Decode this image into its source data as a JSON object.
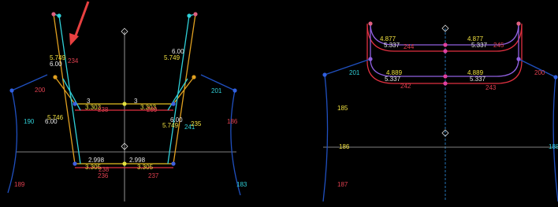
{
  "left_panel": {
    "labels": [
      {
        "text": "5.749"
      },
      {
        "text": "6.00"
      },
      {
        "text": "234"
      },
      {
        "text": "200"
      },
      {
        "text": "190"
      },
      {
        "text": "5.746"
      },
      {
        "text": "6.00"
      },
      {
        "text": "3"
      },
      {
        "text": "3.303"
      },
      {
        "text": "238"
      },
      {
        "text": "3"
      },
      {
        "text": "3.303"
      },
      {
        "text": "239"
      },
      {
        "text": "6.00"
      },
      {
        "text": "5.749"
      },
      {
        "text": "241"
      },
      {
        "text": "201"
      },
      {
        "text": "6.00"
      },
      {
        "text": "5.749"
      },
      {
        "text": "235"
      },
      {
        "text": "186"
      },
      {
        "text": "2.998"
      },
      {
        "text": "3.305"
      },
      {
        "text": "238"
      },
      {
        "text": "2.998"
      },
      {
        "text": "3.305"
      },
      {
        "text": "236"
      },
      {
        "text": "237"
      },
      {
        "text": "189"
      },
      {
        "text": "183"
      }
    ]
  },
  "right_panel": {
    "labels": [
      {
        "text": "4.877"
      },
      {
        "text": "5.337"
      },
      {
        "text": "244"
      },
      {
        "text": "4.877"
      },
      {
        "text": "5.337"
      },
      {
        "text": "245"
      },
      {
        "text": "201"
      },
      {
        "text": "200"
      },
      {
        "text": "4.889"
      },
      {
        "text": "5.337"
      },
      {
        "text": "242"
      },
      {
        "text": "4.889"
      },
      {
        "text": "5.337"
      },
      {
        "text": "243"
      },
      {
        "text": "185"
      },
      {
        "text": "186"
      },
      {
        "text": "187"
      },
      {
        "text": "188"
      }
    ]
  }
}
